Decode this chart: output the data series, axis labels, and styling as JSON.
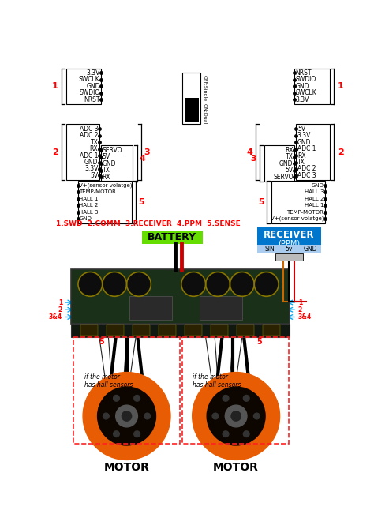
{
  "bg_color": "#ffffff",
  "fig_width": 4.74,
  "fig_height": 6.7,
  "dpi": 100,
  "left_c1_pins": [
    "3.3V",
    "SWCLK",
    "GND",
    "SWDIO",
    "NRST"
  ],
  "left_c2_pins": [
    "ADC 3",
    "ADC 2",
    "TX",
    "RX",
    "ADC 1",
    "GND",
    "3.3V",
    "5V"
  ],
  "left_c3_pins": [
    "SERVO",
    "5V",
    "GND",
    "TX",
    "RX"
  ],
  "left_c5_pins": [
    "V+(sensor volatge)",
    "TEMP-MOTOR",
    "HALL 1",
    "HALL 2",
    "HALL 3",
    "GND"
  ],
  "right_c1_pins": [
    "NRST",
    "SWDIO",
    "GND",
    "SWCLK",
    "3.3V"
  ],
  "right_c2_pins": [
    "5V",
    "3.3V",
    "GND",
    "ADC 1",
    "RX",
    "TX",
    "ADC 2",
    "ADC 3"
  ],
  "right_c3_pins": [
    "RX",
    "TX",
    "GND",
    "5V",
    "SERVO"
  ],
  "right_c5_pins": [
    "GND",
    "HALL 3",
    "HALL 2",
    "HALL 1",
    "TEMP-MOTOR",
    "V+(sensor volatge)"
  ],
  "battery_label": "BATTERY",
  "receiver_label": "RECEIVER",
  "receiver_sub": "(PPM)",
  "motor_label": "MOTOR",
  "hall_text": "if the motor\nhas hall sensors",
  "legend": "1.SWD  2.COMM  3.RECEIVER  4.PPM  5.SENSE",
  "colors": {
    "red": "#ff0000",
    "cyan": "#00aaff",
    "battery_green": "#66dd00",
    "receiver_blue": "#0077cc",
    "motor_orange": "#e85d04",
    "dashed_red": "#ff2222",
    "pcb_green": "#1a3a1a",
    "pcb_edge": "#333333",
    "cap_dark": "#111111",
    "cap_ring": "#887700"
  }
}
